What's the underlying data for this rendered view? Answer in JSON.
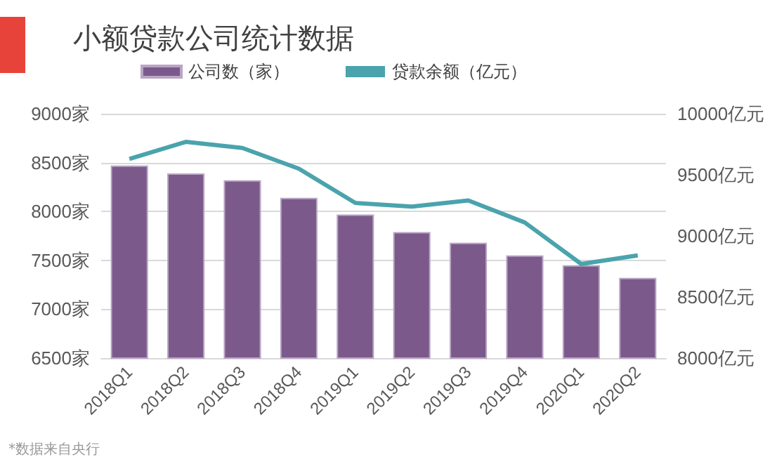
{
  "chart_data": {
    "type": "bar",
    "title": "小额贷款公司统计数据",
    "categories": [
      "2018Q1",
      "2018Q2",
      "2018Q3",
      "2018Q4",
      "2019Q1",
      "2019Q2",
      "2019Q3",
      "2019Q4",
      "2020Q1",
      "2020Q2"
    ],
    "series": [
      {
        "name": "公司数（家）",
        "color": "#7b5a8b",
        "values": [
          8470,
          8390,
          8320,
          8140,
          7970,
          7790,
          7680,
          7550,
          7450,
          7320
        ]
      },
      {
        "name": "贷款余额（亿元）",
        "type": "line",
        "axis": "y2",
        "color": "#4aa3ad",
        "values": [
          9630,
          9770,
          9720,
          9550,
          9270,
          9240,
          9290,
          9110,
          8770,
          8840
        ]
      }
    ],
    "ylim": [
      6500,
      9000
    ],
    "yticks": [
      {
        "value": 6500,
        "label": "6500家"
      },
      {
        "value": 7000,
        "label": "7000家"
      },
      {
        "value": 7500,
        "label": "7500家"
      },
      {
        "value": 8000,
        "label": "8000家"
      },
      {
        "value": 8500,
        "label": "8500家"
      },
      {
        "value": 9000,
        "label": "9000家"
      }
    ],
    "y2lim": [
      8000,
      10000
    ],
    "y2ticks": [
      {
        "value": 8000,
        "label": "8000亿元"
      },
      {
        "value": 8500,
        "label": "8500亿元"
      },
      {
        "value": 9000,
        "label": "9000亿元"
      },
      {
        "value": 9500,
        "label": "9500亿元"
      },
      {
        "value": 10000,
        "label": "10000亿元"
      }
    ],
    "grid": "y",
    "legend": "top left",
    "marker": "none",
    "line_style": "solid",
    "annotations": [
      "*数据来自央行"
    ]
  }
}
